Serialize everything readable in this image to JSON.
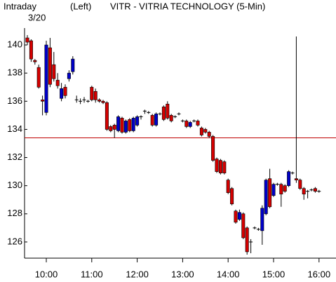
{
  "chart_data": {
    "type": "candlestick",
    "title": "VITR - VITRIA TECHNOLOGY  (5-Min)",
    "subtitle": "Intraday",
    "axis_side": "(Left)",
    "date": "3/20",
    "x": [
      575,
      580,
      585,
      590,
      595,
      600,
      605,
      610,
      615,
      620,
      625,
      630,
      635,
      640,
      645,
      650,
      655,
      660,
      665,
      670,
      675,
      680,
      685,
      690,
      695,
      700,
      705,
      710,
      715,
      720,
      725,
      730,
      735,
      740,
      745,
      750,
      755,
      760,
      765,
      770,
      775,
      780,
      785,
      790,
      795,
      800,
      805,
      810,
      815,
      820,
      825,
      830,
      835,
      840,
      845,
      850,
      855,
      860,
      865,
      870,
      875,
      880,
      885,
      890,
      895,
      900,
      905,
      910,
      915,
      920,
      925,
      930,
      935,
      940,
      945,
      950,
      955,
      960
    ],
    "open": [
      140.5,
      140.3,
      138.9,
      138.4,
      136.1,
      135.2,
      139.8,
      138.6,
      137.5,
      136.2,
      137.0,
      137.6,
      138.1,
      136.1,
      136.0,
      136.1,
      136.0,
      137.0,
      136.7,
      136.1,
      136.0,
      135.9,
      134.2,
      134.3,
      133.9,
      134.8,
      133.8,
      134.7,
      133.9,
      134.3,
      134.9,
      135.3,
      135.2,
      135.0,
      134.3,
      135.1,
      135.6,
      135.8,
      135.0,
      134.9,
      135.1,
      134.6,
      134.6,
      134.2,
      134.6,
      134.6,
      134.1,
      134.0,
      133.8,
      133.5,
      131.9,
      131.8,
      131.7,
      130.4,
      129.8,
      128.2,
      127.6,
      128.0,
      127.0,
      126.0,
      127.0,
      126.9,
      126.8,
      128.0,
      130.5,
      129.3,
      130.1,
      130.1,
      130.0,
      130.0,
      130.9,
      130.5,
      130.4,
      129.8,
      129.6,
      129.7,
      129.8,
      129.6
    ],
    "high": [
      140.7,
      140.4,
      139.0,
      138.6,
      136.4,
      140.3,
      140.5,
      139.5,
      138.0,
      137.3,
      137.2,
      138.2,
      139.2,
      136.4,
      136.2,
      136.3,
      136.1,
      137.1,
      136.9,
      136.2,
      136.1,
      136.0,
      134.3,
      134.4,
      135.0,
      134.9,
      134.7,
      134.8,
      134.9,
      135.0,
      135.0,
      135.4,
      135.3,
      135.1,
      135.2,
      135.2,
      135.7,
      136.0,
      135.1,
      135.0,
      135.2,
      134.7,
      134.7,
      134.6,
      134.7,
      134.7,
      134.2,
      134.1,
      133.9,
      133.6,
      132.0,
      131.9,
      131.8,
      130.5,
      129.9,
      128.3,
      128.3,
      128.1,
      127.1,
      126.2,
      127.1,
      127.0,
      128.6,
      130.5,
      131.2,
      130.2,
      130.2,
      130.2,
      130.1,
      131.1,
      131.0,
      140.6,
      130.5,
      129.9,
      129.7,
      129.8,
      129.9,
      129.7
    ],
    "low": [
      140.0,
      138.8,
      138.6,
      136.9,
      135.0,
      135.0,
      137.0,
      137.4,
      136.9,
      136.0,
      136.2,
      137.4,
      137.9,
      135.9,
      135.8,
      135.9,
      135.9,
      136.0,
      135.9,
      135.9,
      135.8,
      133.9,
      133.8,
      133.4,
      133.8,
      133.7,
      133.7,
      133.8,
      133.8,
      134.2,
      134.7,
      135.1,
      135.1,
      134.2,
      134.2,
      135.0,
      134.6,
      134.7,
      134.5,
      134.8,
      135.0,
      134.5,
      134.1,
      134.1,
      134.5,
      134.2,
      133.5,
      133.7,
      133.4,
      131.7,
      130.9,
      130.8,
      130.8,
      129.4,
      128.6,
      127.3,
      127.5,
      126.2,
      125.1,
      125.2,
      126.9,
      126.8,
      125.8,
      127.9,
      128.4,
      129.2,
      130.0,
      128.5,
      129.5,
      129.9,
      130.8,
      130.2,
      129.7,
      129.0,
      129.1,
      129.6,
      129.5,
      129.5
    ],
    "close": [
      140.2,
      139.0,
      138.8,
      137.0,
      136.0,
      140.0,
      137.2,
      137.6,
      137.1,
      136.9,
      136.4,
      138.0,
      139.0,
      136.1,
      136.0,
      136.1,
      136.0,
      136.1,
      136.1,
      136.0,
      135.9,
      134.0,
      133.9,
      134.0,
      134.9,
      133.8,
      134.6,
      133.9,
      134.8,
      134.9,
      134.9,
      135.3,
      135.2,
      134.3,
      135.1,
      135.1,
      134.7,
      134.8,
      134.6,
      134.9,
      135.1,
      134.6,
      134.2,
      134.5,
      134.6,
      134.3,
      133.6,
      133.8,
      133.5,
      131.8,
      131.0,
      130.9,
      130.9,
      129.5,
      128.7,
      127.4,
      128.1,
      126.3,
      125.3,
      126.0,
      127.0,
      126.9,
      128.4,
      130.4,
      128.5,
      130.1,
      130.1,
      129.4,
      129.6,
      131.0,
      130.9,
      130.4,
      129.8,
      129.4,
      129.6,
      129.7,
      129.6,
      129.6
    ],
    "up_color": "#0000c8",
    "down_color": "#d40000",
    "reference_line": 133.4,
    "reference_color": "#c00000",
    "xlim": [
      571.3,
      982.4
    ],
    "xticks": [
      {
        "value": 600,
        "label": "10:00"
      },
      {
        "value": 660,
        "label": "11:00"
      },
      {
        "value": 720,
        "label": "12:00"
      },
      {
        "value": 780,
        "label": "13:00"
      },
      {
        "value": 840,
        "label": "14:00"
      },
      {
        "value": 900,
        "label": "15:00"
      },
      {
        "value": 960,
        "label": "16:00"
      }
    ],
    "ylim": [
      124.85,
      141.2
    ],
    "yticks": [
      126,
      128,
      130,
      132,
      134,
      136,
      138,
      140
    ]
  }
}
